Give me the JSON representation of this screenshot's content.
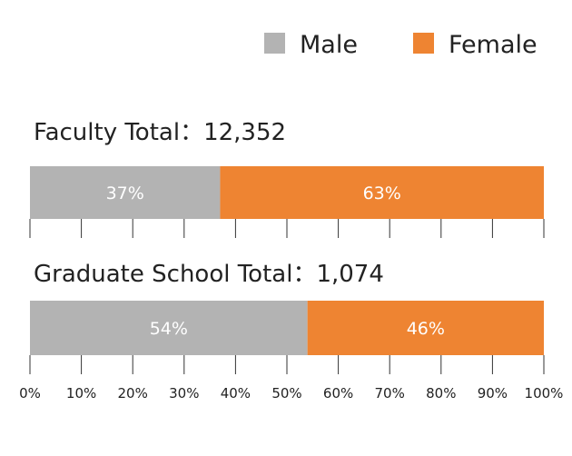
{
  "chart_data": {
    "type": "bar",
    "stacked": true,
    "orientation": "horizontal",
    "legend": {
      "placement": "top-right",
      "items": [
        {
          "name": "Male",
          "color": "#b3b3b3"
        },
        {
          "name": "Female",
          "color": "#ee8432"
        }
      ]
    },
    "xaxis": {
      "range": [
        0,
        100
      ],
      "ticks": [
        "0%",
        "10%",
        "20%",
        "30%",
        "40%",
        "50%",
        "60%",
        "70%",
        "80%",
        "90%",
        "100%"
      ]
    },
    "groups": [
      {
        "title": "Faculty Total：12,352",
        "values": [
          {
            "series": "Male",
            "value": 37,
            "label": "37%"
          },
          {
            "series": "Female",
            "value": 63,
            "label": "63%"
          }
        ]
      },
      {
        "title": "Graduate School Total：1,074",
        "values": [
          {
            "series": "Male",
            "value": 54,
            "label": "54%"
          },
          {
            "series": "Female",
            "value": 46,
            "label": "46%"
          }
        ]
      }
    ]
  }
}
